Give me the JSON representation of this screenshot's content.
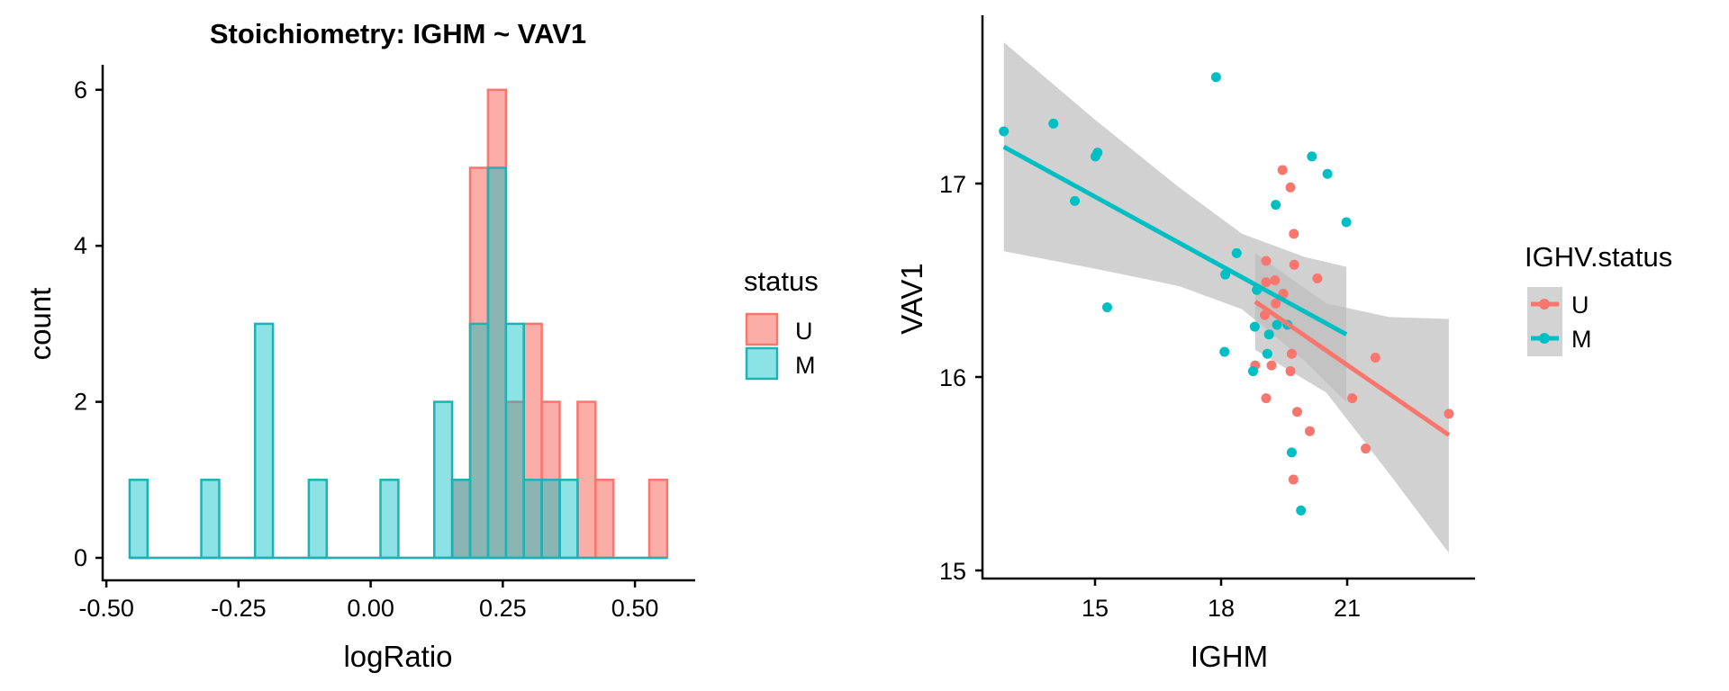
{
  "chart_data": [
    {
      "type": "histogram",
      "title": "Stoichiometry: IGHM ~ VAV1",
      "xlabel": "logRatio",
      "ylabel": "count",
      "xlim": [
        -0.507,
        0.614
      ],
      "ylim": [
        -0.3,
        6.5
      ],
      "xticks": [
        -0.5,
        -0.25,
        0.0,
        0.25,
        0.5
      ],
      "xtick_labels": [
        "-0.50",
        "-0.25",
        "0.00",
        "0.25",
        "0.50"
      ],
      "yticks": [
        0,
        2,
        4,
        6
      ],
      "ytick_labels": [
        "0",
        "2",
        "4",
        "6"
      ],
      "grid": false,
      "bins": {
        "start": -0.456,
        "end": 0.561,
        "count": 30
      },
      "legend": {
        "title": "status",
        "position": "right",
        "entries": [
          "U",
          "M"
        ]
      },
      "series": [
        {
          "name": "U",
          "color": "#F8766D",
          "fill": "#F8766D",
          "fill_alpha": 0.6,
          "counts": [
            0,
            0,
            0,
            0,
            0,
            0,
            0,
            0,
            0,
            0,
            0,
            0,
            0,
            0,
            0,
            0,
            0,
            0,
            1,
            5,
            6,
            2,
            3,
            2,
            0,
            2,
            1,
            0,
            0,
            1
          ]
        },
        {
          "name": "M",
          "color": "#1DB2B6",
          "fill": "#00BFC4",
          "fill_alpha": 0.45,
          "counts": [
            1,
            0,
            0,
            0,
            1,
            0,
            0,
            3,
            0,
            0,
            1,
            0,
            0,
            0,
            1,
            0,
            0,
            2,
            1,
            3,
            5,
            3,
            1,
            1,
            1,
            0,
            0,
            0,
            0,
            0
          ]
        }
      ]
    },
    {
      "type": "scatter",
      "title": "",
      "xlabel": "IGHM",
      "ylabel": "VAV1",
      "xlim": [
        12.32,
        24.02
      ],
      "ylim": [
        14.96,
        17.87
      ],
      "xticks": [
        15,
        18,
        21
      ],
      "xtick_labels": [
        "15",
        "18",
        "21"
      ],
      "yticks": [
        15,
        16,
        17
      ],
      "ytick_labels": [
        "15",
        "16",
        "17"
      ],
      "grid": false,
      "legend": {
        "title": "IGHV.status",
        "position": "right",
        "entries": [
          "U",
          "M"
        ]
      },
      "ribbon_color": "#BEBEBE",
      "series": [
        {
          "name": "U",
          "color": "#F8766D",
          "points": [
            [
              19.46,
              17.07
            ],
            [
              19.65,
              16.98
            ],
            [
              19.73,
              16.74
            ],
            [
              19.07,
              16.6
            ],
            [
              19.74,
              16.58
            ],
            [
              20.29,
              16.51
            ],
            [
              19.28,
              16.5
            ],
            [
              19.07,
              16.49
            ],
            [
              19.48,
              16.43
            ],
            [
              19.3,
              16.38
            ],
            [
              19.04,
              16.32
            ],
            [
              19.68,
              16.12
            ],
            [
              18.81,
              16.06
            ],
            [
              19.2,
              16.06
            ],
            [
              19.65,
              16.03
            ],
            [
              19.07,
              15.89
            ],
            [
              19.81,
              15.82
            ],
            [
              20.11,
              15.72
            ],
            [
              21.44,
              15.63
            ],
            [
              19.72,
              15.47
            ],
            [
              21.12,
              15.89
            ],
            [
              21.67,
              16.1
            ],
            [
              23.42,
              15.81
            ]
          ],
          "fit_line": [
            [
              18.81,
              16.39
            ],
            [
              23.42,
              15.7
            ]
          ],
          "ribbon": {
            "x": [
              18.81,
              20.5,
              22.0,
              23.42
            ],
            "upper": [
              16.64,
              16.38,
              16.31,
              16.3
            ],
            "lower": [
              16.14,
              15.92,
              15.5,
              15.09
            ]
          }
        },
        {
          "name": "M",
          "color": "#00BFC4",
          "points": [
            [
              12.83,
              17.27
            ],
            [
              14.01,
              17.31
            ],
            [
              14.52,
              16.91
            ],
            [
              15.01,
              17.14
            ],
            [
              15.06,
              17.16
            ],
            [
              15.29,
              16.36
            ],
            [
              17.88,
              17.55
            ],
            [
              18.37,
              16.64
            ],
            [
              18.1,
              16.53
            ],
            [
              18.08,
              16.13
            ],
            [
              18.76,
              16.03
            ],
            [
              18.8,
              16.26
            ],
            [
              18.85,
              16.45
            ],
            [
              19.1,
              16.12
            ],
            [
              19.14,
              16.22
            ],
            [
              19.3,
              16.89
            ],
            [
              19.33,
              16.27
            ],
            [
              19.58,
              16.27
            ],
            [
              19.68,
              15.61
            ],
            [
              19.9,
              15.31
            ],
            [
              20.16,
              17.14
            ],
            [
              20.53,
              17.05
            ],
            [
              20.98,
              16.8
            ]
          ],
          "fit_line": [
            [
              12.83,
              17.19
            ],
            [
              20.98,
              16.22
            ]
          ],
          "ribbon": {
            "x": [
              12.83,
              15.0,
              17.0,
              18.5,
              20.0,
              20.98
            ],
            "upper": [
              17.73,
              17.33,
              16.98,
              16.74,
              16.62,
              16.57
            ],
            "lower": [
              16.65,
              16.56,
              16.47,
              16.35,
              16.08,
              15.87
            ]
          }
        }
      ]
    }
  ]
}
